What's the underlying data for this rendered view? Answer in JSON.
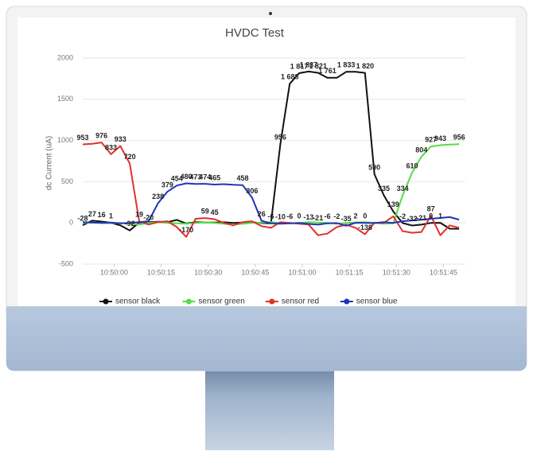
{
  "chart_data": {
    "type": "line",
    "title": "HVDC Test",
    "y_label": "dc Current (uA)",
    "x": [
      "10:49:50",
      "10:49:53",
      "10:49:56",
      "10:49:59",
      "10:50:02",
      "10:50:05",
      "10:50:08",
      "10:50:11",
      "10:50:14",
      "10:50:17",
      "10:50:20",
      "10:50:23",
      "10:50:26",
      "10:50:29",
      "10:50:32",
      "10:50:35",
      "10:50:38",
      "10:50:41",
      "10:50:44",
      "10:50:47",
      "10:50:50",
      "10:50:53",
      "10:50:56",
      "10:50:59",
      "10:51:02",
      "10:51:05",
      "10:51:08",
      "10:51:11",
      "10:51:14",
      "10:51:17",
      "10:51:20",
      "10:51:23",
      "10:51:26",
      "10:51:29",
      "10:51:32",
      "10:51:35",
      "10:51:38",
      "10:51:41",
      "10:51:44",
      "10:51:47",
      "10:51:50"
    ],
    "xlim": [
      "10:49:50",
      "10:51:52"
    ],
    "xticks": [
      "10:50:00",
      "10:50:15",
      "10:50:30",
      "10:50:45",
      "10:51:00",
      "10:51:15",
      "10:51:30",
      "10:51:45"
    ],
    "ylim": [
      -500,
      2000
    ],
    "yticks": [
      -500,
      0,
      500,
      1000,
      1500,
      2000
    ],
    "grid": true,
    "legend": "bottom",
    "series": [
      {
        "name": "sensor black",
        "color": "#111111",
        "values": [
          -28,
          27,
          16,
          1,
          -30,
          -92,
          5,
          9,
          14,
          9,
          37,
          -7,
          10,
          5,
          4,
          8,
          0,
          4,
          8,
          -2,
          -6,
          956,
          1688,
          1817,
          1837,
          1821,
          1761,
          1761,
          1833,
          1833,
          1820,
          590,
          335,
          139,
          -2,
          -32,
          -21,
          0,
          1,
          -70,
          -71
        ],
        "value_labels": [
          "-28",
          "27",
          "16",
          "1",
          null,
          "-92",
          null,
          null,
          null,
          null,
          null,
          null,
          null,
          null,
          null,
          null,
          null,
          null,
          null,
          null,
          null,
          "956",
          "1 688",
          "1 817",
          "1 837",
          "1 821",
          "1 761",
          null,
          "1 833",
          null,
          "1 820",
          "590",
          "335",
          "139",
          "-2",
          "-32",
          "-21",
          "0",
          "1",
          null,
          null
        ]
      },
      {
        "name": "sensor green",
        "color": "#55dd44",
        "values": [
          0,
          5,
          0,
          -5,
          0,
          -10,
          -20,
          0,
          10,
          0,
          -5,
          -10,
          0,
          5,
          0,
          -10,
          -20,
          -10,
          0,
          5,
          10,
          0,
          -5,
          0,
          10,
          5,
          0,
          -10,
          0,
          5,
          10,
          0,
          -10,
          -5,
          334,
          610,
          804,
          927,
          943,
          950,
          956
        ],
        "value_labels": [
          null,
          null,
          null,
          null,
          null,
          null,
          null,
          null,
          null,
          null,
          null,
          null,
          null,
          null,
          null,
          null,
          null,
          null,
          null,
          null,
          null,
          null,
          null,
          null,
          null,
          null,
          null,
          null,
          null,
          null,
          null,
          null,
          null,
          null,
          "334",
          "610",
          "804",
          "927",
          "943",
          null,
          "956"
        ]
      },
      {
        "name": "sensor red",
        "color": "#e3302c",
        "values": [
          953,
          960,
          976,
          833,
          933,
          720,
          19,
          -20,
          10,
          20,
          -50,
          -170,
          50,
          59,
          45,
          0,
          -30,
          10,
          20,
          -40,
          -60,
          10,
          0,
          -10,
          -20,
          -150,
          -130,
          -50,
          -21,
          -60,
          -138,
          2,
          0,
          80,
          -100,
          -120,
          -110,
          87,
          -150,
          -30,
          -60
        ],
        "value_labels": [
          "953",
          null,
          "976",
          "833",
          "933",
          "720",
          "19",
          "-20",
          null,
          null,
          null,
          "-170",
          null,
          "59",
          "45",
          null,
          null,
          null,
          null,
          null,
          null,
          null,
          null,
          null,
          null,
          null,
          null,
          null,
          null,
          null,
          "-138",
          null,
          null,
          null,
          null,
          null,
          null,
          "87",
          null,
          null,
          null
        ]
      },
      {
        "name": "sensor blue",
        "color": "#2233bb",
        "values": [
          10,
          5,
          0,
          5,
          -5,
          0,
          10,
          20,
          238,
          379,
          454,
          480,
          473,
          474,
          465,
          470,
          462,
          458,
          306,
          26,
          -6,
          -10,
          -6,
          0,
          -13,
          -21,
          -6,
          -2,
          -35,
          2,
          0,
          -2,
          10,
          0,
          20,
          30,
          40,
          50,
          60,
          70,
          40
        ],
        "value_labels": [
          null,
          null,
          null,
          null,
          null,
          null,
          null,
          null,
          "238",
          "379",
          "454",
          "480",
          "473",
          "474",
          "465",
          null,
          null,
          "458",
          "306",
          "26",
          "-6",
          "-10",
          "-6",
          "0",
          "-13",
          "-21",
          "-6",
          "-2",
          "-35",
          "2",
          "0",
          null,
          null,
          null,
          null,
          null,
          null,
          null,
          null,
          null,
          null
        ]
      }
    ]
  }
}
